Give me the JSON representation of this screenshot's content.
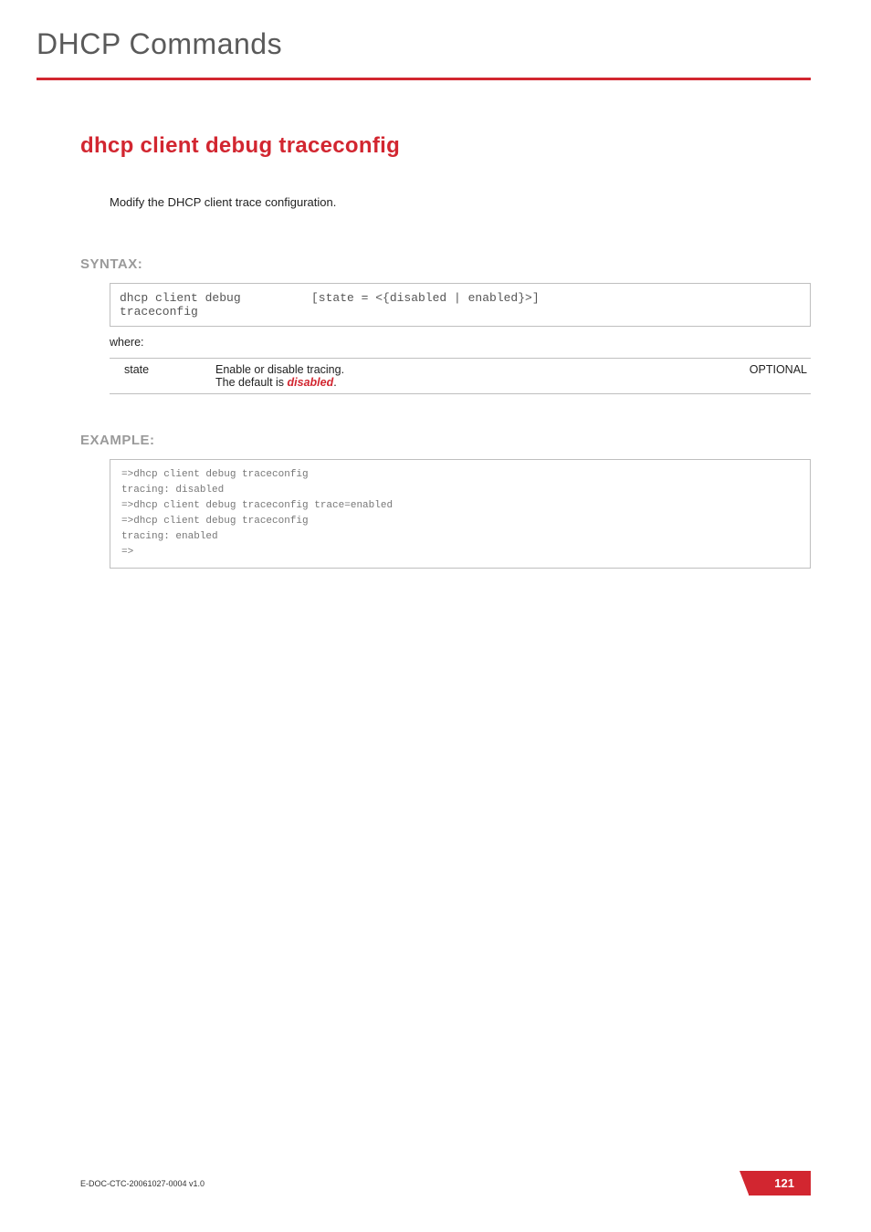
{
  "chapter_title": "DHCP Commands",
  "command": {
    "title": "dhcp client debug traceconfig",
    "description": "Modify the DHCP client trace configuration."
  },
  "syntax": {
    "label": "SYNTAX:",
    "cmd": "dhcp client debug traceconfig",
    "args": "[state = <{disabled | enabled}>]",
    "where_label": "where:",
    "params": [
      {
        "name": "state",
        "desc_prefix": "Enable or disable tracing.\nThe default is ",
        "desc_em": "disabled",
        "desc_suffix": ".",
        "flag": "OPTIONAL"
      }
    ]
  },
  "example": {
    "label": "EXAMPLE:",
    "text": "=>dhcp client debug traceconfig\ntracing: disabled\n=>dhcp client debug traceconfig trace=enabled\n=>dhcp client debug traceconfig\ntracing: enabled\n=>"
  },
  "footer": {
    "doc_id": "E-DOC-CTC-20061027-0004 v1.0",
    "page_number": "121"
  },
  "colors": {
    "brand_red": "#d22630",
    "label_gray": "#9a9a9a",
    "border_gray": "#bfbfbf",
    "mono_gray": "#777"
  }
}
